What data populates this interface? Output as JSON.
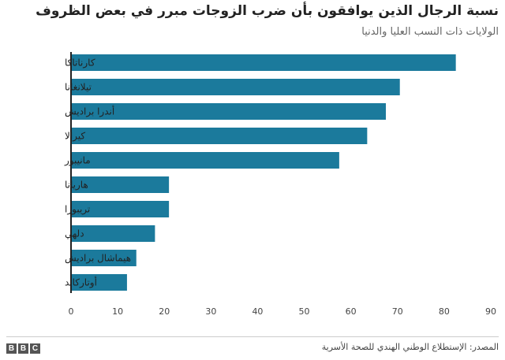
{
  "chart_data": {
    "type": "bar",
    "orientation": "horizontal",
    "title": "نسبة الرجال الذين يوافقون بأن ضرب الزوجات مبرر في بعض الظروف",
    "subtitle": "الولايات ذات النسب العليا والدنيا",
    "categories": [
      "كارناتاكا",
      "تيلانغانا",
      "أندرا براديش",
      "كيرالا",
      "مانيبور",
      "هاريانا",
      "تريبورا",
      "دلهي",
      "هيماشال براديش",
      "أوتاركاند"
    ],
    "values": [
      82.5,
      70.5,
      67.5,
      63.5,
      57.5,
      21,
      21,
      18,
      14,
      12
    ],
    "xlim": [
      0,
      90
    ],
    "xticks": [
      "0",
      "10",
      "20",
      "30",
      "40",
      "50",
      "60",
      "70",
      "80",
      "90"
    ],
    "bar_color": "#1b7a9c",
    "grid": false
  },
  "footer": {
    "source": "المصدر: الإستطلاع الوطني الهندي للصحة الأسرية",
    "logo": "BBC"
  }
}
